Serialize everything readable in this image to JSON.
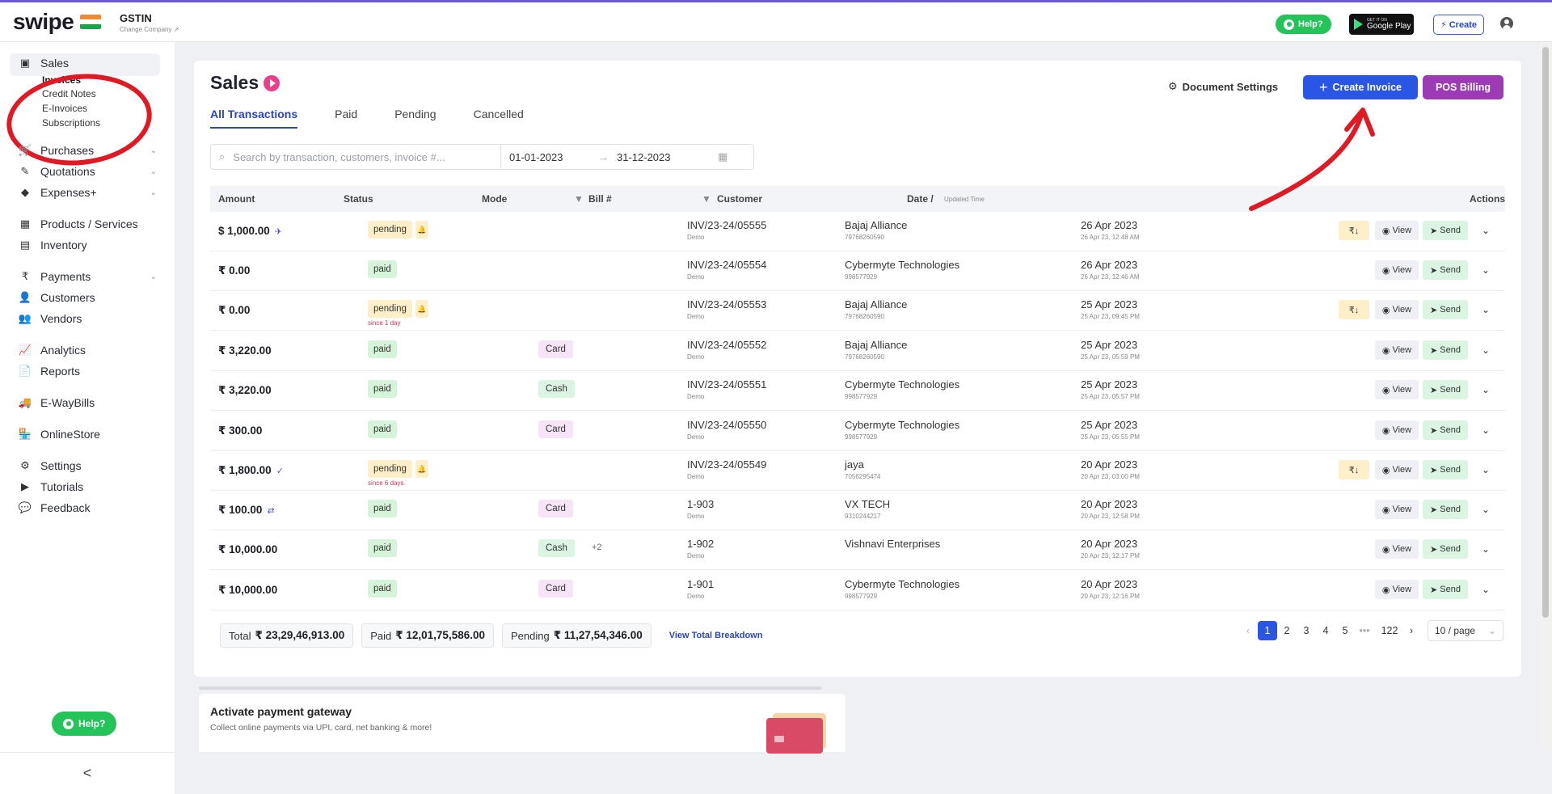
{
  "topbar": {
    "logo": "swipe",
    "gstin_title": "GSTIN",
    "gstin_sub": "Change Company ↗",
    "help_label": "Help?",
    "gplay_small": "GET IT ON",
    "gplay_big": "Google Play",
    "create_label": "Create"
  },
  "sidebar": {
    "sales": "Sales",
    "sub": [
      "Invoices",
      "Credit Notes",
      "E-Invoices",
      "Subscriptions"
    ],
    "purchases": "Purchases",
    "quotations": "Quotations",
    "expenses": "Expenses+",
    "products": "Products / Services",
    "inventory": "Inventory",
    "payments": "Payments",
    "customers": "Customers",
    "vendors": "Vendors",
    "analytics": "Analytics",
    "reports": "Reports",
    "ewaybills": "E-WayBills",
    "onlinestore": "OnlineStore",
    "settings": "Settings",
    "tutorials": "Tutorials",
    "feedback": "Feedback",
    "help": "Help?",
    "collapse": "<"
  },
  "main": {
    "title": "Sales",
    "tabs": [
      "All Transactions",
      "Paid",
      "Pending",
      "Cancelled"
    ],
    "doc_settings": "Document Settings",
    "create_invoice": "Create Invoice",
    "pos_billing": "POS Billing",
    "search_placeholder": "Search by transaction, customers, invoice #...",
    "date_from": "01-01-2023",
    "date_to": "31-12-2023",
    "columns": {
      "amount": "Amount",
      "status": "Status",
      "mode": "Mode",
      "bill": "Bill #",
      "customer": "Customer",
      "date": "Date /",
      "date_sub": "Updated Time",
      "actions": "Actions"
    },
    "rows": [
      {
        "amount": "$ 1,000.00",
        "status": "pending",
        "since": "",
        "mode": "",
        "bill": "INV/23-24/05555",
        "bill_sub": "Demo",
        "customer": "Bajaj Alliance",
        "phone": "79768260590",
        "date": "26 Apr 2023",
        "time": "26 Apr 23, 12:48 AM",
        "rupee": "₹↓",
        "view": "View",
        "send": "Send"
      },
      {
        "amount": "₹ 0.00",
        "status": "paid",
        "since": "",
        "mode": "",
        "bill": "INV/23-24/05554",
        "bill_sub": "Demo",
        "customer": "Cybermyte Technologies",
        "phone": "998577929",
        "date": "26 Apr 2023",
        "time": "26 Apr 23, 12:46 AM",
        "rupee": "",
        "view": "View",
        "send": "Send"
      },
      {
        "amount": "₹ 0.00",
        "status": "pending",
        "since": "since 1 day",
        "mode": "",
        "bill": "INV/23-24/05553",
        "bill_sub": "Demo",
        "customer": "Bajaj Alliance",
        "phone": "79768260590",
        "date": "25 Apr 2023",
        "time": "25 Apr 23, 09:45 PM",
        "rupee": "₹↓",
        "view": "View",
        "send": "Send"
      },
      {
        "amount": "₹ 3,220.00",
        "status": "paid",
        "since": "",
        "mode": "Card",
        "bill": "INV/23-24/05552",
        "bill_sub": "Demo",
        "customer": "Bajaj Alliance",
        "phone": "79768260590",
        "date": "25 Apr 2023",
        "time": "25 Apr 23, 05:59 PM",
        "rupee": "",
        "view": "View",
        "send": "Send"
      },
      {
        "amount": "₹ 3,220.00",
        "status": "paid",
        "since": "",
        "mode": "Cash",
        "bill": "INV/23-24/05551",
        "bill_sub": "Demo",
        "customer": "Cybermyte Technologies",
        "phone": "998577929",
        "date": "25 Apr 2023",
        "time": "25 Apr 23, 05:57 PM",
        "rupee": "",
        "view": "View",
        "send": "Send"
      },
      {
        "amount": "₹ 300.00",
        "status": "paid",
        "since": "",
        "mode": "Card",
        "bill": "INV/23-24/05550",
        "bill_sub": "Demo",
        "customer": "Cybermyte Technologies",
        "phone": "998577929",
        "date": "25 Apr 2023",
        "time": "25 Apr 23, 05:55 PM",
        "rupee": "",
        "view": "View",
        "send": "Send"
      },
      {
        "amount": "₹ 1,800.00",
        "status": "pending",
        "since": "since 6 days",
        "mode": "",
        "bill": "INV/23-24/05549",
        "bill_sub": "Demo",
        "customer": "jaya",
        "phone": "7056295474",
        "date": "20 Apr 2023",
        "time": "20 Apr 23, 03:00 PM",
        "rupee": "₹↓",
        "view": "View",
        "send": "Send"
      },
      {
        "amount": "₹ 100.00",
        "status": "paid",
        "since": "",
        "mode": "Card",
        "bill": "1-903",
        "bill_sub": "Demo",
        "customer": "VX TECH",
        "phone": "9310244217",
        "date": "20 Apr 2023",
        "time": "20 Apr 23, 12:58 PM",
        "rupee": "",
        "view": "View",
        "send": "Send"
      },
      {
        "amount": "₹ 10,000.00",
        "status": "paid",
        "since": "",
        "mode": "Cash",
        "extra": "+2",
        "bill": "1-902",
        "bill_sub": "Demo",
        "customer": "Vishnavi Enterprises",
        "phone": "",
        "date": "20 Apr 2023",
        "time": "20 Apr 23, 12:17 PM",
        "rupee": "",
        "view": "View",
        "send": "Send"
      },
      {
        "amount": "₹ 10,000.00",
        "status": "paid",
        "since": "",
        "mode": "Card",
        "bill": "1-901",
        "bill_sub": "Demo",
        "customer": "Cybermyte Technologies",
        "phone": "998577929",
        "date": "20 Apr 2023",
        "time": "20 Apr 23, 12:16 PM",
        "rupee": "",
        "view": "View",
        "send": "Send"
      }
    ],
    "totals": {
      "total_label": "Total",
      "total_value": "₹ 23,29,46,913.00",
      "paid_label": "Paid",
      "paid_value": "₹ 12,01,75,586.00",
      "pending_label": "Pending",
      "pending_value": "₹ 11,27,54,346.00",
      "breakdown": "View Total Breakdown"
    },
    "pagination": {
      "pages": [
        "1",
        "2",
        "3",
        "4",
        "5",
        "•••",
        "122"
      ],
      "per_page": "10 / page"
    }
  },
  "gateway": {
    "title": "Activate payment gateway",
    "subtitle": "Collect online payments via UPI, card, net banking & more!"
  },
  "colors": {
    "accent_blue": "#2a55e5",
    "pos_purple": "#9c3bb5",
    "annotation_red": "#e01a24",
    "help_green": "#25c45a"
  }
}
